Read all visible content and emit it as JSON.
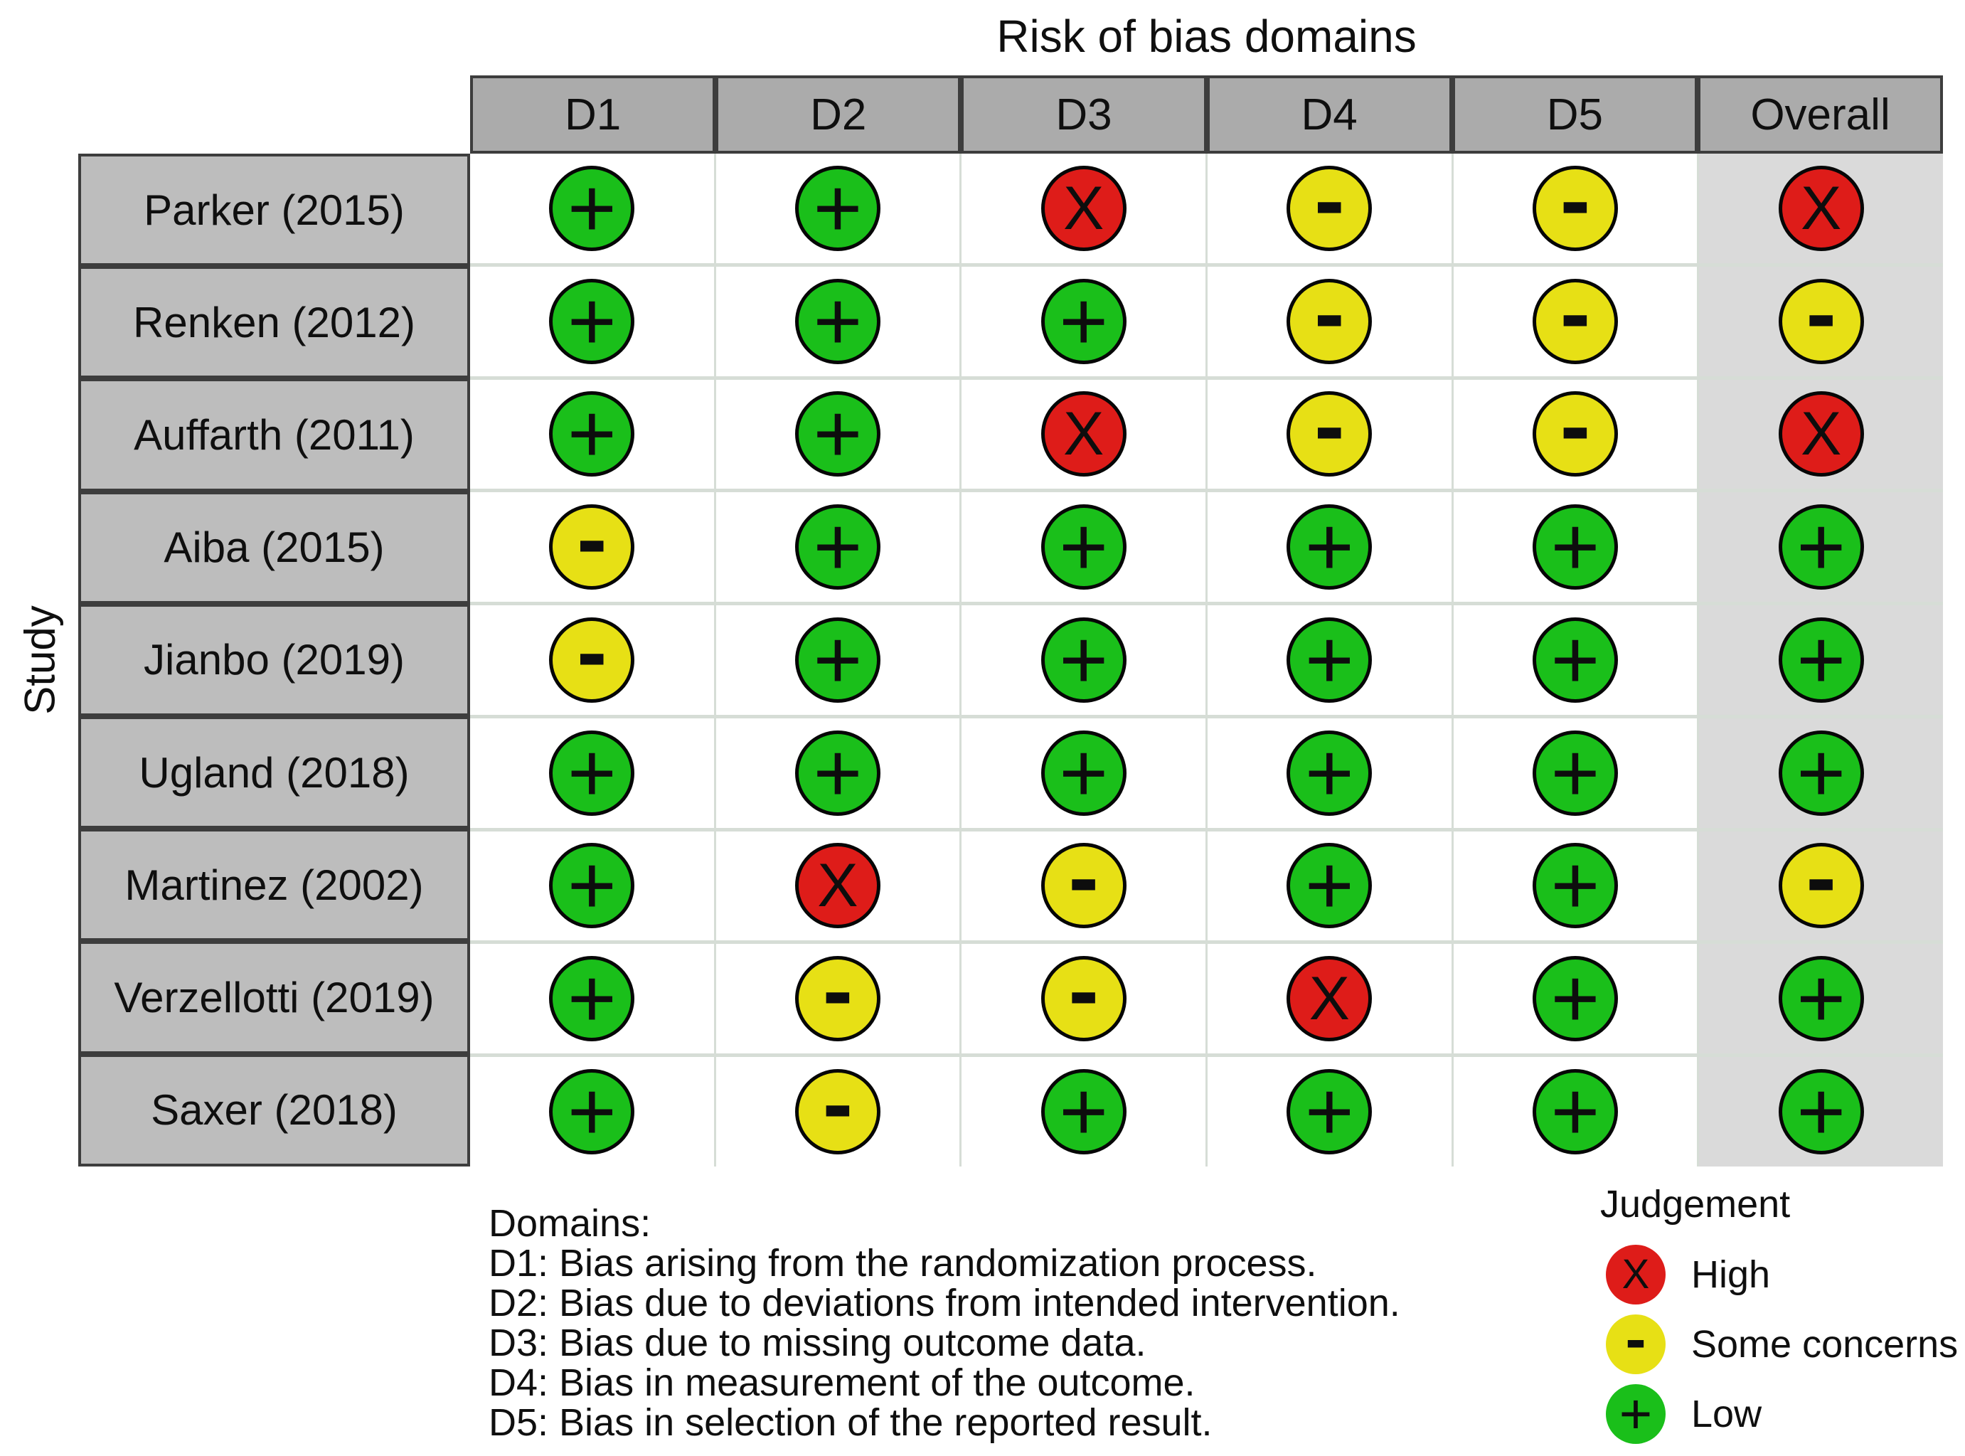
{
  "chart_data": {
    "type": "heatmap",
    "title": "Risk of bias domains",
    "ylabel": "Study",
    "legend_title": "Judgement",
    "legend_position": "bottom-right",
    "x_categories": [
      "D1",
      "D2",
      "D3",
      "D4",
      "D5",
      "Overall"
    ],
    "y_categories": [
      "Parker (2015)",
      "Renken (2012)",
      "Auffarth (2011)",
      "Aiba (2015)",
      "Jianbo (2019)",
      "Ugland (2018)",
      "Martinez (2002)",
      "Verzellotti (2019)",
      "Saxer (2018)"
    ],
    "values": [
      [
        "low",
        "low",
        "high",
        "some",
        "some",
        "high"
      ],
      [
        "low",
        "low",
        "low",
        "some",
        "some",
        "some"
      ],
      [
        "low",
        "low",
        "high",
        "some",
        "some",
        "high"
      ],
      [
        "some",
        "low",
        "low",
        "low",
        "low",
        "low"
      ],
      [
        "some",
        "low",
        "low",
        "low",
        "low",
        "low"
      ],
      [
        "low",
        "low",
        "low",
        "low",
        "low",
        "low"
      ],
      [
        "low",
        "high",
        "some",
        "low",
        "low",
        "some"
      ],
      [
        "low",
        "some",
        "some",
        "high",
        "low",
        "low"
      ],
      [
        "low",
        "some",
        "low",
        "low",
        "low",
        "low"
      ]
    ],
    "judgement_levels": [
      {
        "key": "high",
        "symbol": "X",
        "label": "High",
        "color": "#de1c19"
      },
      {
        "key": "some",
        "symbol": "-",
        "label": "Some concerns",
        "color": "#e7e015"
      },
      {
        "key": "low",
        "symbol": "+",
        "label": "Low",
        "color": "#1abf1a"
      }
    ]
  },
  "footer": {
    "heading": "Domains:",
    "domain_descriptions": [
      "D1: Bias arising from the randomization process.",
      "D2: Bias due to deviations from intended intervention.",
      "D3: Bias due to missing outcome data.",
      "D4: Bias in measurement of the outcome.",
      "D5: Bias in selection of the reported result."
    ]
  },
  "colors": {
    "header_cell_bg": "#ababab",
    "study_cell_bg": "#bdbdbd",
    "cell_bg": "#ffffff",
    "overall_col_bg": "#dadada",
    "grid_line": "#d6ddd6",
    "border_dark": "#3d3d3d",
    "symbol": "#0d0d0d"
  }
}
